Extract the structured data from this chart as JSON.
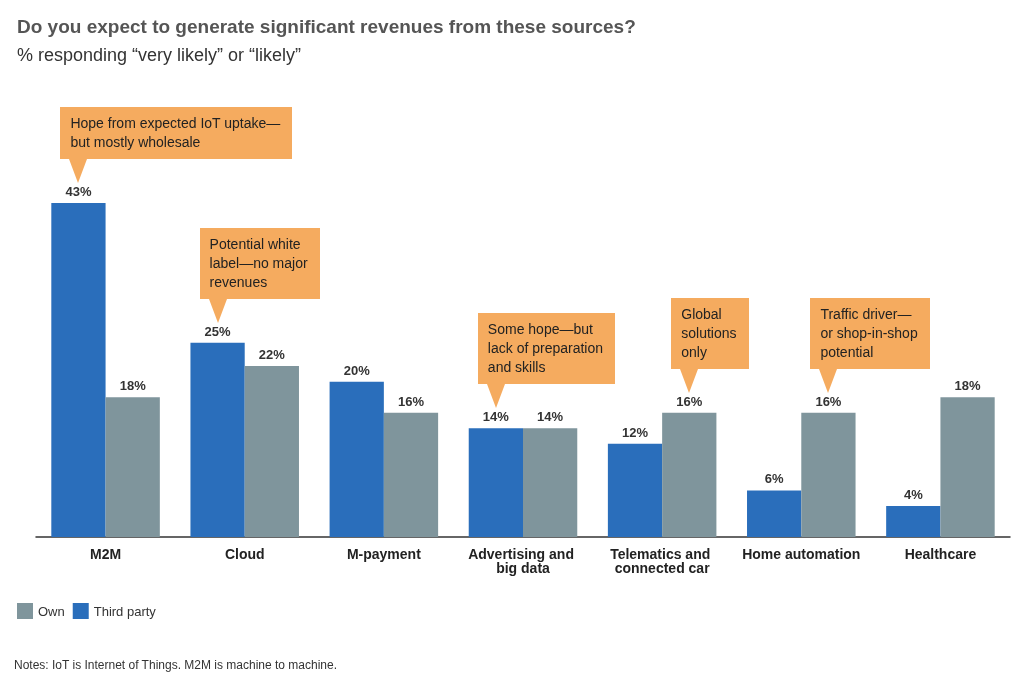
{
  "chart_data": {
    "type": "bar",
    "title": "Do you expect to generate significant revenues from these sources?",
    "subtitle": "% responding “very likely” or “likely”",
    "categories": [
      "M2M",
      "Cloud",
      "M-payment",
      "Advertising and big data",
      "Telematics and connected car",
      "Home automation",
      "Healthcare"
    ],
    "series": [
      {
        "name": "Third party",
        "color": "#2a6ebb",
        "values": [
          43,
          25,
          20,
          14,
          12,
          6,
          4
        ],
        "value_labels": [
          "43%",
          "25%",
          "20%",
          "14%",
          "12%",
          "6%",
          "4%"
        ]
      },
      {
        "name": "Own",
        "color": "#7f959c",
        "values": [
          18,
          22,
          16,
          14,
          16,
          16,
          18
        ],
        "value_labels": [
          "18%",
          "22%",
          "16%",
          "14%",
          "16%",
          "16%",
          "18%"
        ]
      }
    ],
    "legend": "bottom left",
    "grid": false,
    "annotations": [
      "Hope from expected IoT uptake—\nbut mostly wholesale",
      "Potential white\nlabel—no major\nrevenues",
      "Some hope—but\nlack of preparation\nand skills",
      "Global\nsolutions\nonly",
      "Traffic driver—\nor shop-in-shop\npotential",
      "Notes: IoT is Internet of Things. M2M is machine to machine."
    ]
  }
}
